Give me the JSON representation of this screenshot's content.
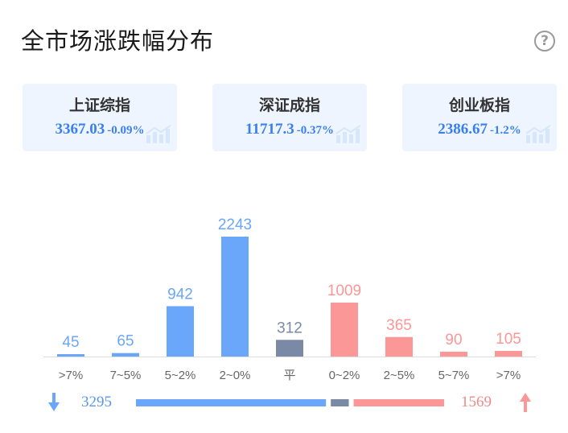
{
  "title": "全市场涨跌幅分布",
  "help_glyph": "?",
  "indices": [
    {
      "name": "上证综指",
      "value": "3367.03",
      "change": "-0.09%"
    },
    {
      "name": "深证成指",
      "value": "11717.3",
      "change": "-0.37%"
    },
    {
      "name": "创业板指",
      "value": "2386.67",
      "change": "-1.2%"
    }
  ],
  "colors": {
    "down": "#6aa7fb",
    "flat": "#7a8aa6",
    "up": "#fb9797",
    "axis": "#dddddd",
    "tick": "#666666"
  },
  "chart_data": {
    "type": "bar",
    "categories": [
      ">7%",
      "7~5%",
      "5~2%",
      "2~0%",
      "平",
      "0~2%",
      "2~5%",
      "5~7%",
      ">7%"
    ],
    "values": [
      45,
      65,
      942,
      2243,
      312,
      1009,
      365,
      90,
      105
    ],
    "groups": [
      "down",
      "down",
      "down",
      "down",
      "flat",
      "up",
      "up",
      "up",
      "up"
    ],
    "data_labels": [
      "45",
      "65",
      "942",
      "2243",
      "312",
      "1009",
      "365",
      "90",
      "105"
    ],
    "ylim": [
      0,
      2243
    ]
  },
  "summary": {
    "down_total": "3295",
    "flat_total": 312,
    "up_total": "1569"
  }
}
